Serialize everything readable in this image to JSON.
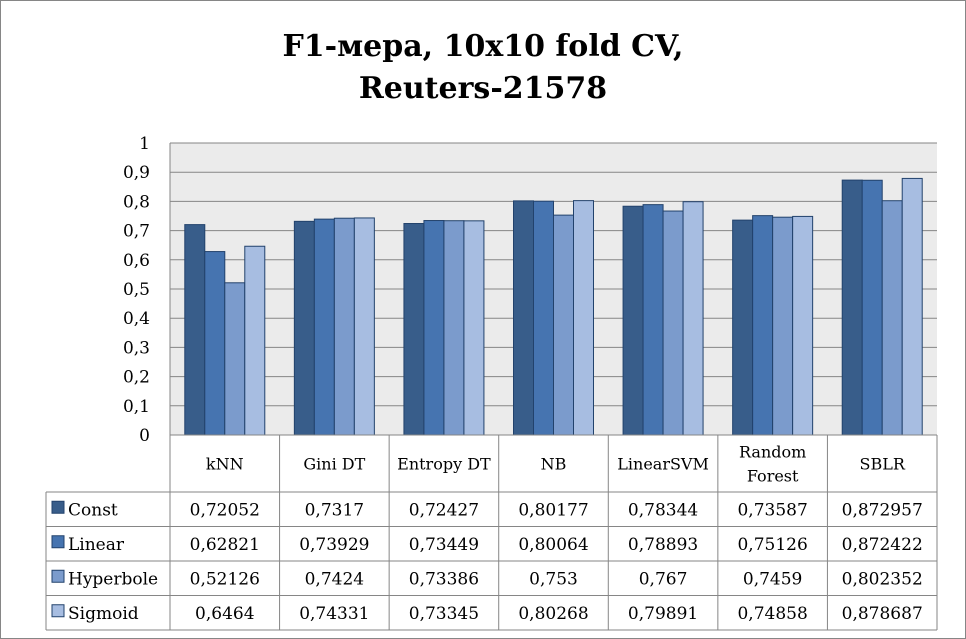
{
  "chart_data": {
    "type": "bar",
    "title_lines": [
      "F1-мера, 10x10 fold CV,",
      "Reuters-21578"
    ],
    "categories": [
      [
        "kNN"
      ],
      [
        "Gini DT"
      ],
      [
        "Entropy DT"
      ],
      [
        "NB"
      ],
      [
        "LinearSVM"
      ],
      [
        "Random",
        "Forest"
      ],
      [
        "SBLR"
      ]
    ],
    "series": [
      {
        "name": "Const",
        "color": "#385D8A",
        "values": [
          0.72052,
          0.7317,
          0.72427,
          0.80177,
          0.78344,
          0.73587,
          0.872957
        ],
        "labels": [
          "0,72052",
          "0,7317",
          "0,72427",
          "0,80177",
          "0,78344",
          "0,73587",
          "0,872957"
        ]
      },
      {
        "name": "Linear",
        "color": "#4674B0",
        "values": [
          0.62821,
          0.73929,
          0.73449,
          0.80064,
          0.78893,
          0.75126,
          0.872422
        ],
        "labels": [
          "0,62821",
          "0,73929",
          "0,73449",
          "0,80064",
          "0,78893",
          "0,75126",
          "0,872422"
        ]
      },
      {
        "name": "Hyperbole",
        "color": "#7B9BCC",
        "values": [
          0.52126,
          0.7424,
          0.73386,
          0.753,
          0.767,
          0.7459,
          0.802352
        ],
        "labels": [
          "0,52126",
          "0,7424",
          "0,73386",
          "0,753",
          "0,767",
          "0,7459",
          "0,802352"
        ]
      },
      {
        "name": "Sigmoid",
        "color": "#A7BDE1",
        "values": [
          0.6464,
          0.74331,
          0.73345,
          0.80268,
          0.79891,
          0.74858,
          0.878687
        ],
        "labels": [
          "0,6464",
          "0,74331",
          "0,73345",
          "0,80268",
          "0,79891",
          "0,74858",
          "0,878687"
        ]
      }
    ],
    "ylim": [
      0,
      1
    ],
    "yticks": [
      "0",
      "0,1",
      "0,2",
      "0,3",
      "0,4",
      "0,5",
      "0,6",
      "0,7",
      "0,8",
      "0,9",
      "1"
    ],
    "grid": true,
    "legend": "data-table"
  }
}
